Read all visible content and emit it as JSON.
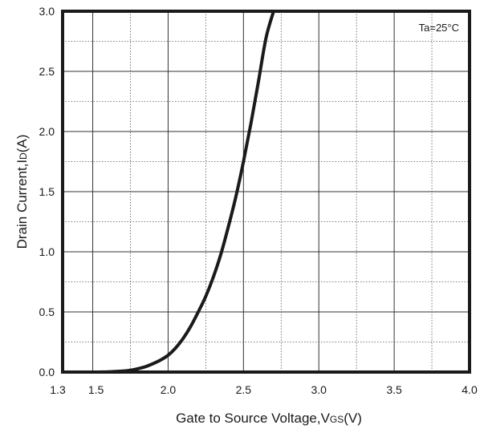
{
  "chart_data": {
    "type": "line",
    "title": "",
    "xlabel": {
      "main": "Gate to Source Voltage,V",
      "sub": "GS",
      "unit": "(V)"
    },
    "ylabel": {
      "main": "Drain Current,I",
      "sub": "D",
      "unit": "(A)"
    },
    "xlim": [
      1.3,
      4.0
    ],
    "ylim": [
      0.0,
      3.0
    ],
    "x_ticks": [
      1.3,
      1.5,
      2.0,
      2.5,
      3.0,
      3.5,
      4.0
    ],
    "x_tick_labels": [
      "1.3",
      "1.5",
      "2.0",
      "2.5",
      "3.0",
      "3.5",
      "4.0"
    ],
    "y_ticks": [
      0.0,
      0.5,
      1.0,
      1.5,
      2.0,
      2.5,
      3.0
    ],
    "y_tick_labels": [
      "0.0",
      "0.5",
      "1.0",
      "1.5",
      "2.0",
      "2.5",
      "3.0"
    ],
    "grid": "on",
    "annotation": "Ta=25°C",
    "series": [
      {
        "color": "#1a1a1a",
        "x": [
          1.3,
          1.5,
          1.6,
          1.7,
          1.75,
          1.8,
          1.85,
          1.9,
          1.95,
          2.0,
          2.05,
          2.1,
          2.15,
          2.2,
          2.25,
          2.3,
          2.35,
          2.4,
          2.45,
          2.5,
          2.55,
          2.6,
          2.65,
          2.7
        ],
        "y": [
          0.0,
          0.0,
          0.002,
          0.008,
          0.015,
          0.028,
          0.045,
          0.07,
          0.1,
          0.14,
          0.2,
          0.28,
          0.38,
          0.5,
          0.63,
          0.79,
          0.98,
          1.21,
          1.46,
          1.75,
          2.07,
          2.42,
          2.78,
          3.0
        ]
      }
    ]
  }
}
